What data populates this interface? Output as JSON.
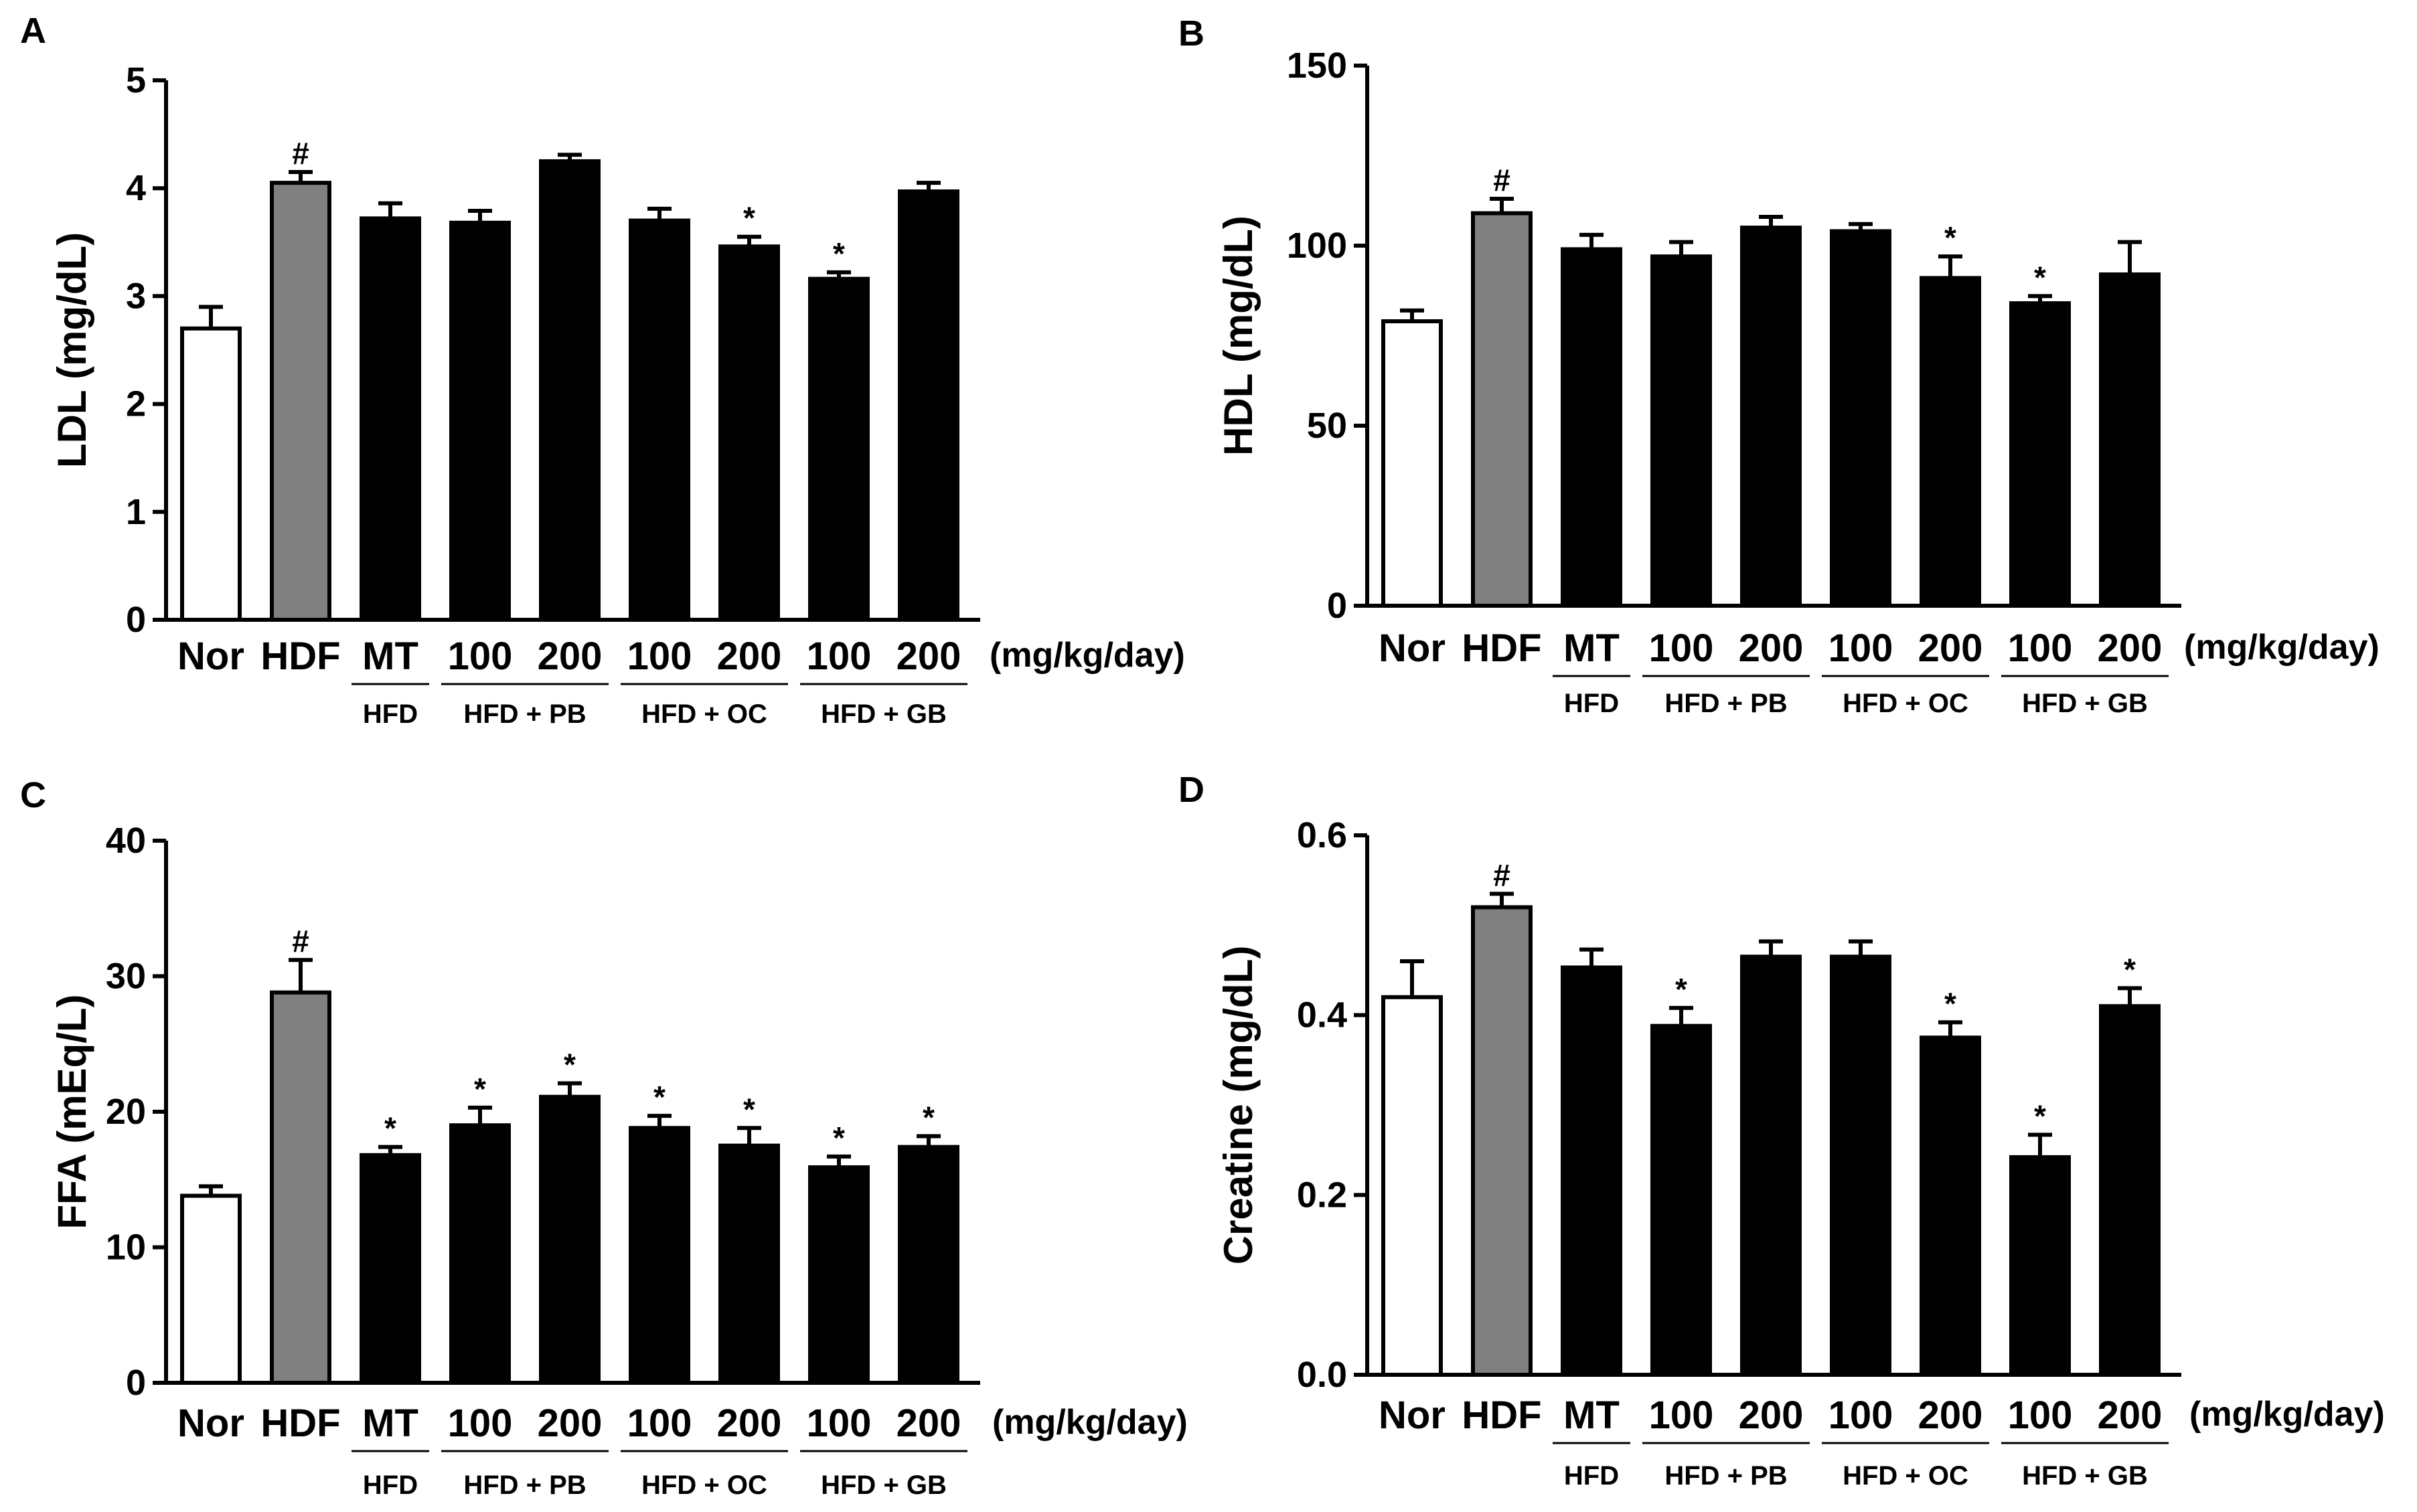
{
  "figure": {
    "categories": [
      "Nor",
      "HDF",
      "MT",
      "100",
      "200",
      "100",
      "200",
      "100",
      "200"
    ],
    "unit_label": "(mg/kg/day)",
    "groups": [
      {
        "label": "HFD",
        "span": [
          2,
          2
        ]
      },
      {
        "label": "HFD + PB",
        "span": [
          3,
          4
        ]
      },
      {
        "label": "HFD + OC",
        "span": [
          5,
          6
        ]
      },
      {
        "label": "HFD + GB",
        "span": [
          7,
          8
        ]
      }
    ],
    "bar_colors": [
      "#ffffff",
      "#808080",
      "#000000",
      "#000000",
      "#000000",
      "#000000",
      "#000000",
      "#000000",
      "#000000"
    ]
  },
  "chart_data": [
    {
      "panel": "A",
      "type": "bar",
      "ylabel": "LDL (mg/dL)",
      "ylim": [
        0,
        5
      ],
      "yticks": [
        0,
        1,
        2,
        3,
        4,
        5
      ],
      "tick_labels": [
        "0",
        "1",
        "2",
        "3",
        "4",
        "5"
      ],
      "values": [
        2.7,
        4.05,
        3.72,
        3.68,
        4.25,
        3.7,
        3.46,
        3.16,
        3.97
      ],
      "errors": [
        0.2,
        0.1,
        0.14,
        0.11,
        0.06,
        0.11,
        0.09,
        0.06,
        0.08
      ],
      "marks": [
        "",
        "#",
        "",
        "",
        "",
        "",
        "*",
        "*",
        ""
      ]
    },
    {
      "panel": "B",
      "type": "bar",
      "ylabel": "HDL (mg/dL)",
      "ylim": [
        0,
        150
      ],
      "yticks": [
        0,
        50,
        100,
        150
      ],
      "tick_labels": [
        "0",
        "50",
        "100",
        "150"
      ],
      "values": [
        79,
        109,
        99,
        97,
        105,
        104,
        91,
        84,
        92
      ],
      "errors": [
        3,
        4,
        4,
        4,
        3,
        2,
        6,
        2,
        9
      ],
      "marks": [
        "",
        "#",
        "",
        "",
        "",
        "",
        "*",
        "*",
        ""
      ]
    },
    {
      "panel": "C",
      "type": "bar",
      "ylabel": "FFA (mEq/L)",
      "ylim": [
        0,
        40
      ],
      "yticks": [
        0,
        10,
        20,
        30,
        40
      ],
      "tick_labels": [
        "0",
        "10",
        "20",
        "30",
        "40"
      ],
      "values": [
        13.8,
        28.8,
        16.8,
        19,
        21.1,
        18.8,
        17.5,
        15.9,
        17.4
      ],
      "errors": [
        0.7,
        2.4,
        0.6,
        1.3,
        1.0,
        0.9,
        1.3,
        0.8,
        0.8
      ],
      "marks": [
        "",
        "#",
        "*",
        "*",
        "*",
        "*",
        "*",
        "*",
        "*"
      ]
    },
    {
      "panel": "D",
      "type": "bar",
      "ylabel": "Creatine (mg/dL)",
      "ylim": [
        0,
        0.6
      ],
      "yticks": [
        0,
        0.2,
        0.4,
        0.6
      ],
      "tick_labels": [
        "0.0",
        "0.2",
        "0.4",
        "0.6"
      ],
      "values": [
        0.42,
        0.52,
        0.453,
        0.388,
        0.465,
        0.465,
        0.375,
        0.242,
        0.41
      ],
      "errors": [
        0.04,
        0.015,
        0.02,
        0.02,
        0.017,
        0.017,
        0.017,
        0.025,
        0.02
      ],
      "marks": [
        "",
        "#",
        "",
        "*",
        "",
        "",
        "*",
        "*",
        "*"
      ]
    }
  ]
}
